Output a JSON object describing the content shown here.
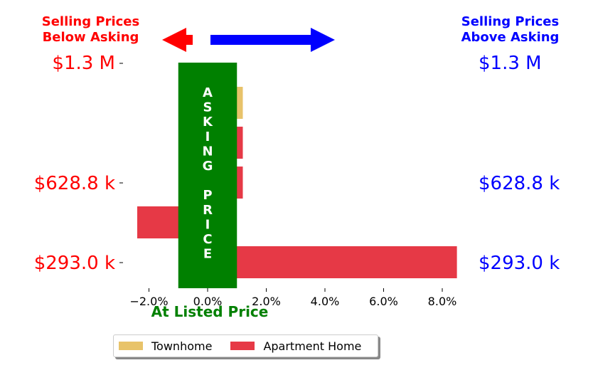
{
  "header": {
    "left_text": "Selling Prices\nBelow Asking",
    "right_text": "Selling Prices\nAbove Asking"
  },
  "price_labels": {
    "left": [
      "$1.3 M",
      "$628.8 k",
      "$293.0 k"
    ],
    "right": [
      "$1.3 M",
      "$628.8 k",
      "$293.0 k"
    ]
  },
  "asking_banner": "A\nS\nK\nI\nN\nG\n\nP\nR\nI\nC\nE",
  "xaxis_caption": "At Listed Price",
  "colors": {
    "below": "#ff0000",
    "above": "#0000ff",
    "asking": "#008000",
    "townhome": "#e8c36a",
    "apartment": "#e63946"
  },
  "chart_data": {
    "type": "bar",
    "orientation": "horizontal",
    "xlabel": "At Listed Price",
    "xlim": [
      -3.0,
      8.5
    ],
    "xticks": [
      -2.0,
      0.0,
      2.0,
      4.0,
      6.0,
      8.0
    ],
    "xtick_labels": [
      "−2.0%",
      "0.0%",
      "2.0%",
      "4.0%",
      "6.0%",
      "8.0%"
    ],
    "asking_band": [
      -1.0,
      1.0
    ],
    "bars": [
      {
        "series": "Townhome",
        "value": 1.2
      },
      {
        "series": "Apartment Home",
        "value": 1.2
      },
      {
        "series": "Apartment Home",
        "value": 1.2
      },
      {
        "series": "Apartment Home",
        "value": -2.4
      },
      {
        "series": "Apartment Home",
        "value": 8.5
      }
    ],
    "legend": [
      {
        "name": "Townhome"
      },
      {
        "name": "Apartment Home"
      }
    ],
    "legend_position": "bottom-center"
  }
}
